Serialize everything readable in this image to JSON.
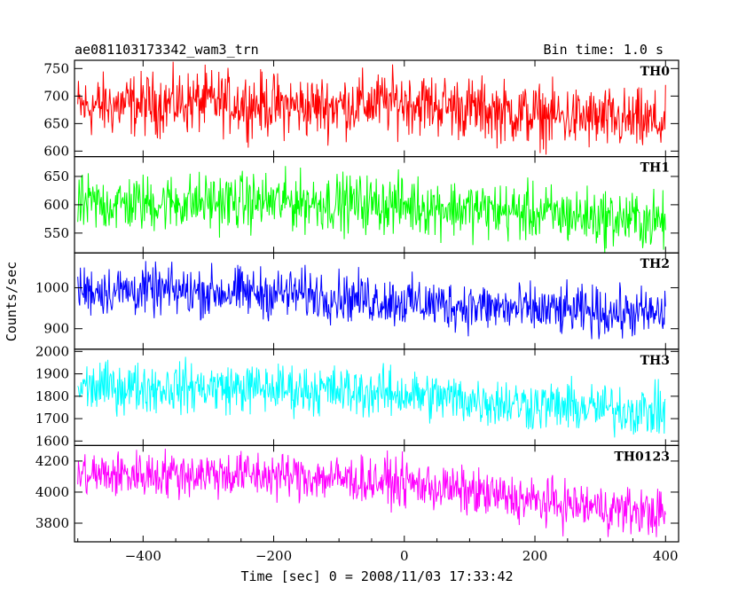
{
  "chart_data": {
    "type": "line",
    "title_left": "ae081103173342_wam3_trn",
    "title_right": "Bin time: 1.0 s",
    "xlabel": "Time [sec] 0 = 2008/11/03 17:33:42",
    "ylabel": "Counts/sec",
    "xlim": [
      -505,
      420
    ],
    "x_ticks": [
      -400,
      -200,
      0,
      200,
      400
    ],
    "x_range": [
      -500,
      400
    ],
    "grid": false,
    "panels": [
      {
        "name": "TH0",
        "color": "#ff0000",
        "ylim": [
          590,
          765
        ],
        "y_ticks": [
          600,
          650,
          700,
          750
        ],
        "trend": [
          [
            -500,
            680
          ],
          [
            -300,
            690
          ],
          [
            -150,
            680
          ],
          [
            0,
            690
          ],
          [
            200,
            665
          ],
          [
            400,
            650
          ]
        ],
        "noise": 28
      },
      {
        "name": "TH1",
        "color": "#00ff00",
        "ylim": [
          515,
          685
        ],
        "y_ticks": [
          550,
          600,
          650
        ],
        "trend": [
          [
            -500,
            600
          ],
          [
            -300,
            605
          ],
          [
            -150,
            605
          ],
          [
            0,
            600
          ],
          [
            200,
            585
          ],
          [
            400,
            570
          ]
        ],
        "noise": 25
      },
      {
        "name": "TH2",
        "color": "#0000ff",
        "ylim": [
          850,
          1085
        ],
        "y_ticks": [
          900,
          1000
        ],
        "trend": [
          [
            -500,
            995
          ],
          [
            -300,
            990
          ],
          [
            -150,
            985
          ],
          [
            0,
            965
          ],
          [
            200,
            945
          ],
          [
            400,
            935
          ]
        ],
        "noise": 30
      },
      {
        "name": "TH3",
        "color": "#00ffff",
        "ylim": [
          1580,
          2010
        ],
        "y_ticks": [
          1600,
          1700,
          1800,
          1900,
          2000
        ],
        "trend": [
          [
            -500,
            1840
          ],
          [
            -300,
            1840
          ],
          [
            -150,
            1830
          ],
          [
            0,
            1810
          ],
          [
            200,
            1760
          ],
          [
            400,
            1730
          ]
        ],
        "noise": 55
      },
      {
        "name": "TH0123",
        "color": "#ff00ff",
        "ylim": [
          3680,
          4300
        ],
        "y_ticks": [
          3800,
          4000,
          4200
        ],
        "trend": [
          [
            -500,
            4110
          ],
          [
            -300,
            4120
          ],
          [
            -150,
            4100
          ],
          [
            0,
            4060
          ],
          [
            200,
            3940
          ],
          [
            400,
            3860
          ]
        ],
        "noise": 75
      }
    ]
  }
}
